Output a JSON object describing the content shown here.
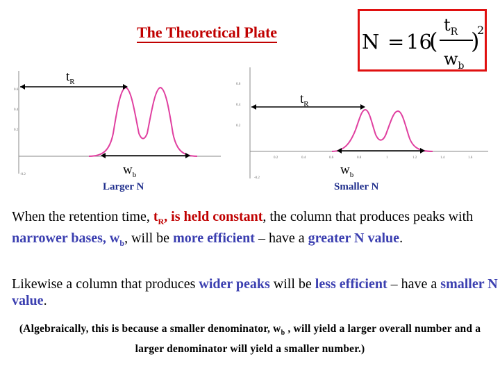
{
  "title": "The Theoretical Plate",
  "formula": {
    "lhs": "N",
    "eq": "=",
    "coef": "16",
    "lparen": "(",
    "rparen": ")",
    "exponent": "2",
    "num_base": "t",
    "num_sub": "R",
    "den_base": "w",
    "den_sub": "b"
  },
  "plots": {
    "left": {
      "tr_base": "t",
      "tr_sub": "R",
      "wb_base": "w",
      "wb_sub": "b",
      "caption": "Larger N",
      "y_ticks": [
        "0.6",
        "0.4",
        "0.2",
        "-0.2"
      ]
    },
    "right": {
      "tr_base": "t",
      "tr_sub": "R",
      "wb_base": "w",
      "wb_sub": "b",
      "caption": "Smaller N",
      "y_ticks": [
        "0.6",
        "0.4",
        "0.2",
        "-0.2"
      ],
      "x_ticks": [
        "0.2",
        "0.4",
        "0.6",
        "0.8",
        "1",
        "1.2",
        "1.4",
        "1.6"
      ]
    }
  },
  "paragraph1": {
    "a": "When the retention time, ",
    "tr_base": "t",
    "tr_sub": "R",
    "comma1": ",",
    "b": " is held constant",
    "c": ", the column that produces peaks with ",
    "d": "narrower bases, ",
    "wb_base": "w",
    "wb_sub": "b",
    "e": ", will be ",
    "f": "more efficient",
    "g": " – have a ",
    "h": "greater N value",
    "i": "."
  },
  "paragraph2": {
    "a": "Likewise a column that produces ",
    "b": "wider peaks",
    "c": " will be ",
    "d": "less efficient",
    "e": " – have a ",
    "f": "smaller N value",
    "g": "."
  },
  "paragraph3": {
    "a": "(Algebraically, this is because a smaller denominator, ",
    "wb_base": "w",
    "wb_sub": "b",
    "b": " , will yield a larger overall number and a larger denominator will yield a smaller number.)"
  }
}
